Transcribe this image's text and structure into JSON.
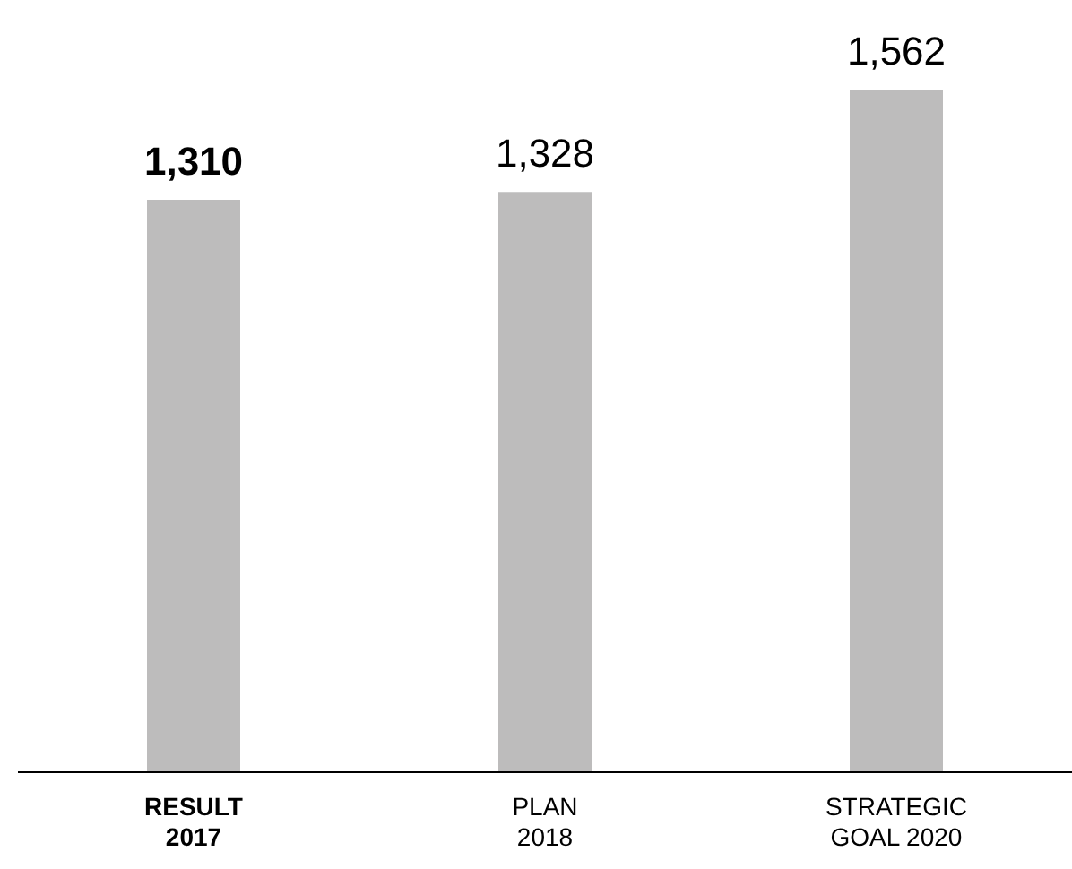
{
  "chart_data": {
    "type": "bar",
    "categories": [
      "RESULT 2017",
      "PLAN 2018",
      "STRATEGIC GOAL 2020"
    ],
    "values": [
      1310,
      1328,
      1562
    ],
    "value_labels": [
      "1,310",
      "1,328",
      "1,562"
    ],
    "color": "#bdbcbc",
    "grid": false,
    "legend": false
  }
}
